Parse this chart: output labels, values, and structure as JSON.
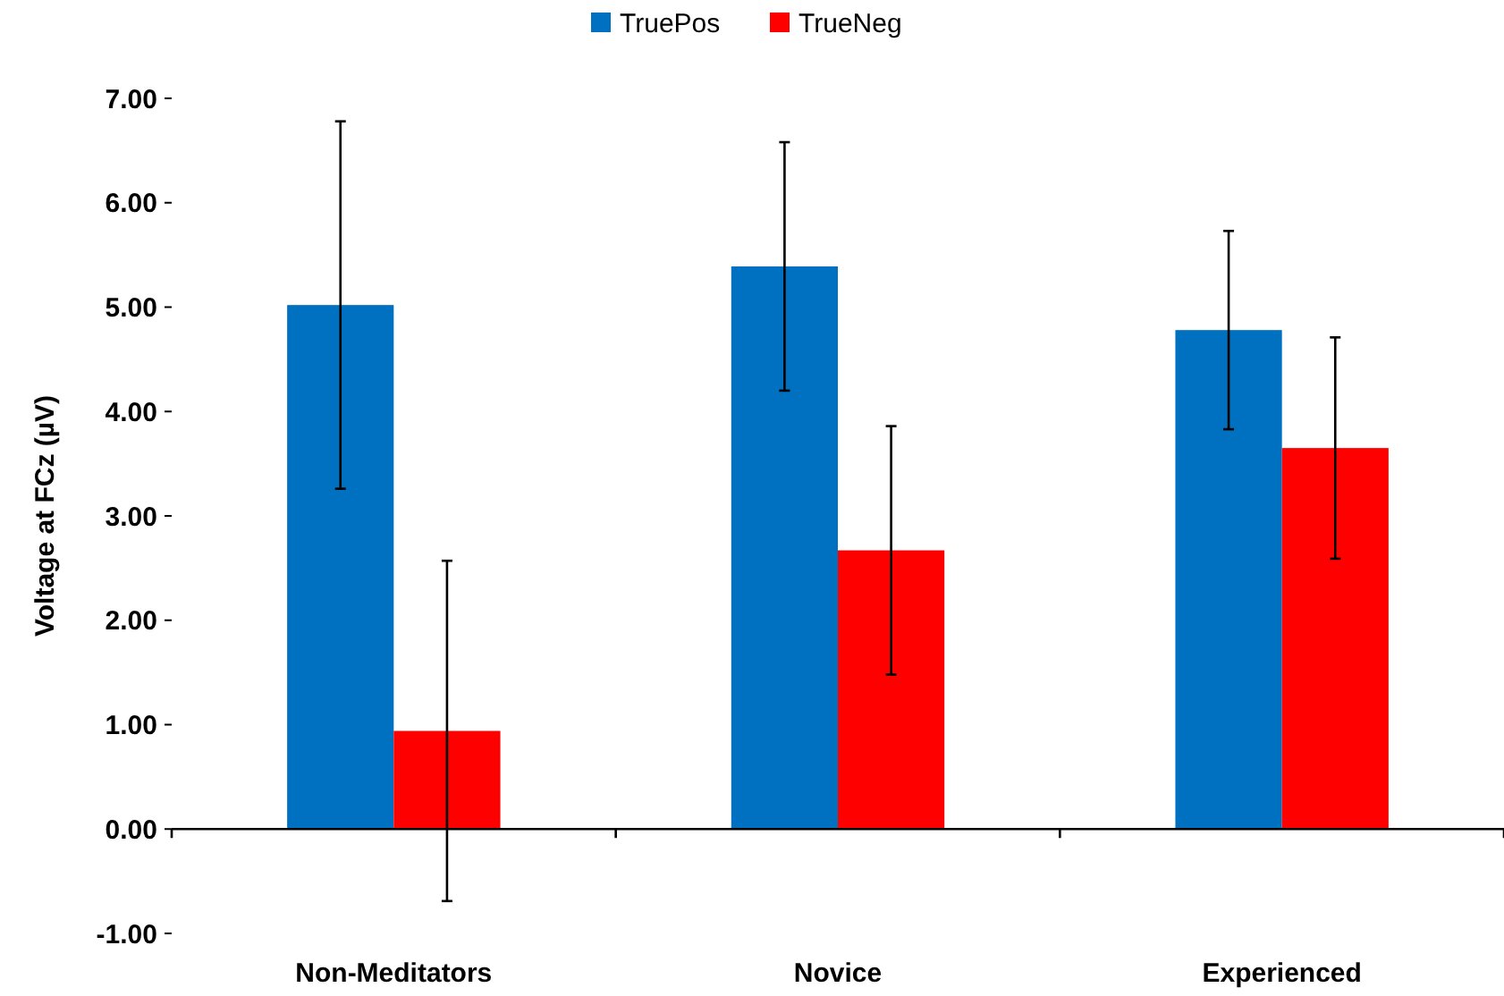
{
  "chart_data": {
    "type": "bar",
    "ylabel": "Voltage at FCz (µV)",
    "categories": [
      "Non-Meditators",
      "Novice",
      "Experienced"
    ],
    "series": [
      {
        "name": "TruePos",
        "color": "#0070c0",
        "values": [
          5.02,
          5.39,
          4.78
        ],
        "errors": [
          1.76,
          1.19,
          0.95
        ]
      },
      {
        "name": "TrueNeg",
        "color": "#ff0000",
        "values": [
          0.94,
          2.67,
          3.65
        ],
        "errors": [
          1.63,
          1.19,
          1.06
        ]
      }
    ],
    "ylim": [
      -1,
      7
    ],
    "yticks": [
      {
        "value": -1,
        "label": "-1.00"
      },
      {
        "value": 0,
        "label": "0.00"
      },
      {
        "value": 1,
        "label": "1.00"
      },
      {
        "value": 2,
        "label": "2.00"
      },
      {
        "value": 3,
        "label": "3.00"
      },
      {
        "value": 4,
        "label": "4.00"
      },
      {
        "value": 5,
        "label": "5.00"
      },
      {
        "value": 6,
        "label": "6.00"
      },
      {
        "value": 7,
        "label": "7.00"
      }
    ],
    "legend": "top"
  }
}
